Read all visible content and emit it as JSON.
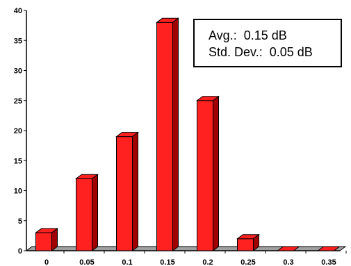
{
  "chart_data": {
    "type": "bar",
    "title": "",
    "xlabel": "",
    "ylabel": "",
    "categories": [
      "0",
      "0.05",
      "0.1",
      "0.15",
      "0.2",
      "0.25",
      "0.3",
      "0.35"
    ],
    "values": [
      3,
      12,
      19,
      38,
      25,
      2,
      0,
      0
    ],
    "ylim": [
      0,
      40
    ],
    "yticks": [
      0,
      5,
      10,
      15,
      20,
      25,
      30,
      35,
      40
    ],
    "grid": false,
    "bar_color": "#ff2020",
    "bar_side_color": "#a00000",
    "floor_color": "#a0a0a0",
    "annotations": [
      {
        "label": "Avg.:",
        "value": "0.15 dB"
      },
      {
        "label": "Std. Dev.:",
        "value": "0.05 dB"
      }
    ]
  }
}
